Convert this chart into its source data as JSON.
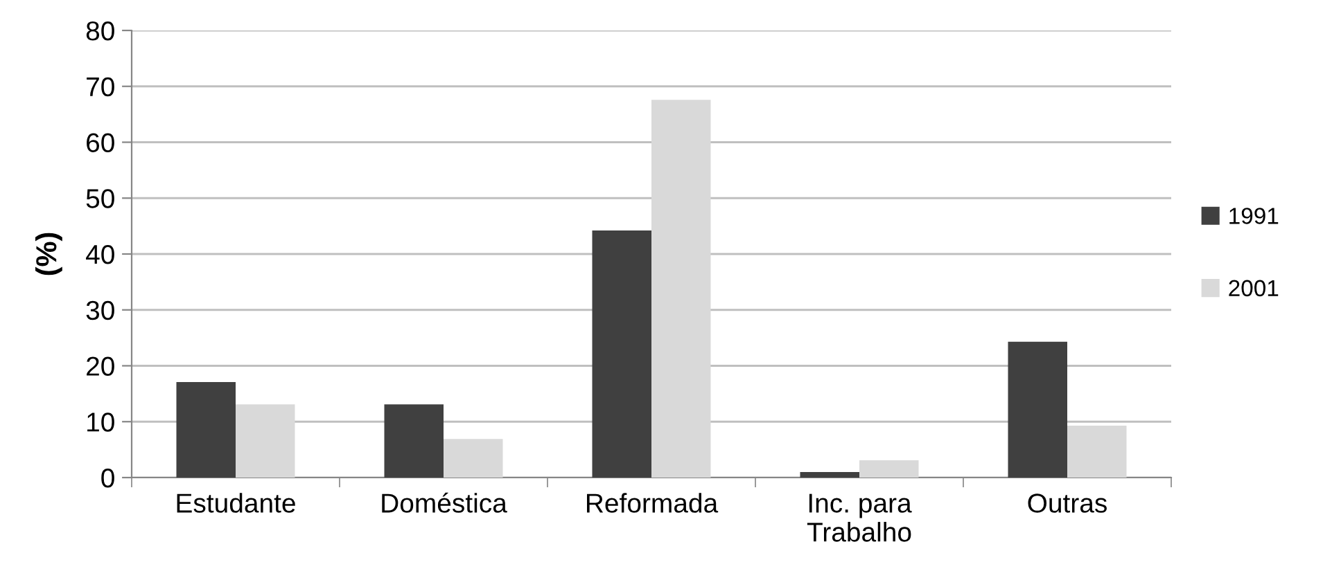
{
  "chart_data": {
    "type": "bar",
    "ylabel": "(%)",
    "categories": [
      "Estudante",
      "Doméstica",
      "Reformada",
      "Inc. para\nTrabalho",
      "Outras"
    ],
    "series": [
      {
        "name": "1991",
        "color": "#404040",
        "values": [
          17.1,
          13.1,
          44.2,
          1.0,
          24.3
        ]
      },
      {
        "name": "2001",
        "color": "#d9d9d9",
        "values": [
          13.1,
          6.9,
          67.6,
          3.1,
          9.3
        ]
      }
    ],
    "ylim": [
      0,
      80
    ],
    "yticks": [
      0,
      10,
      20,
      30,
      40,
      50,
      60,
      70,
      80
    ],
    "grid": "y",
    "legend": "right"
  }
}
